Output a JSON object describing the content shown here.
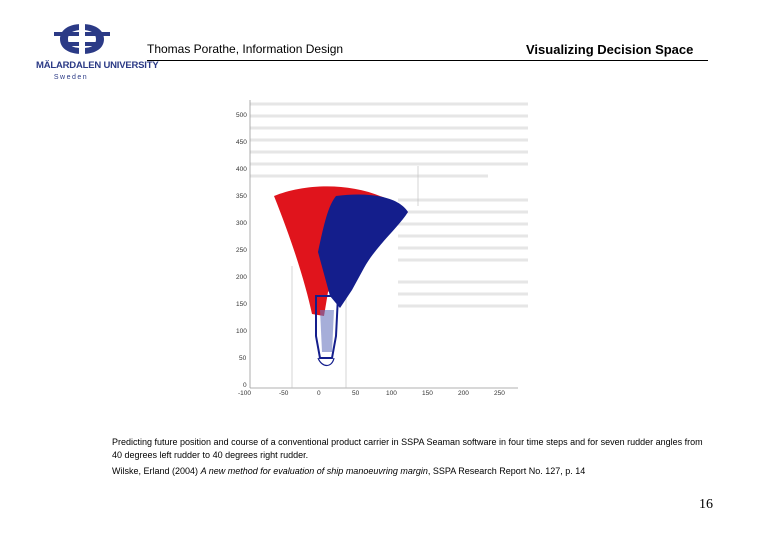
{
  "logo": {
    "name": "MÄLARDALEN UNIVERSITY",
    "country": "Sweden",
    "colors": {
      "ring": "#2b3a86",
      "bar": "#2b3a86"
    }
  },
  "header": {
    "author": "Thomas Porathe, Information Design",
    "title": "Visualizing Decision Space"
  },
  "figure": {
    "y_ticks": [
      "500",
      "450",
      "400",
      "350",
      "300",
      "250",
      "200",
      "150",
      "100",
      "50",
      "0"
    ],
    "x_ticks": [
      "-100",
      "-50",
      "0",
      "50",
      "100",
      "150",
      "200",
      "250"
    ],
    "colors": {
      "red": "#e0141c",
      "blue": "#141e8c"
    }
  },
  "caption": "Predicting future position and course of a conventional product carrier in SSPA Seaman software in four time steps and for seven rudder angles from 40 degrees left rudder to 40 degrees right rudder.",
  "citation": {
    "authors": "Wilske, Erland (2004)",
    "title": "A new method for evaluation of ship manoeuvring margin",
    "source": ", SSPA Research Report No. 127, p. 14"
  },
  "page_number": "16"
}
